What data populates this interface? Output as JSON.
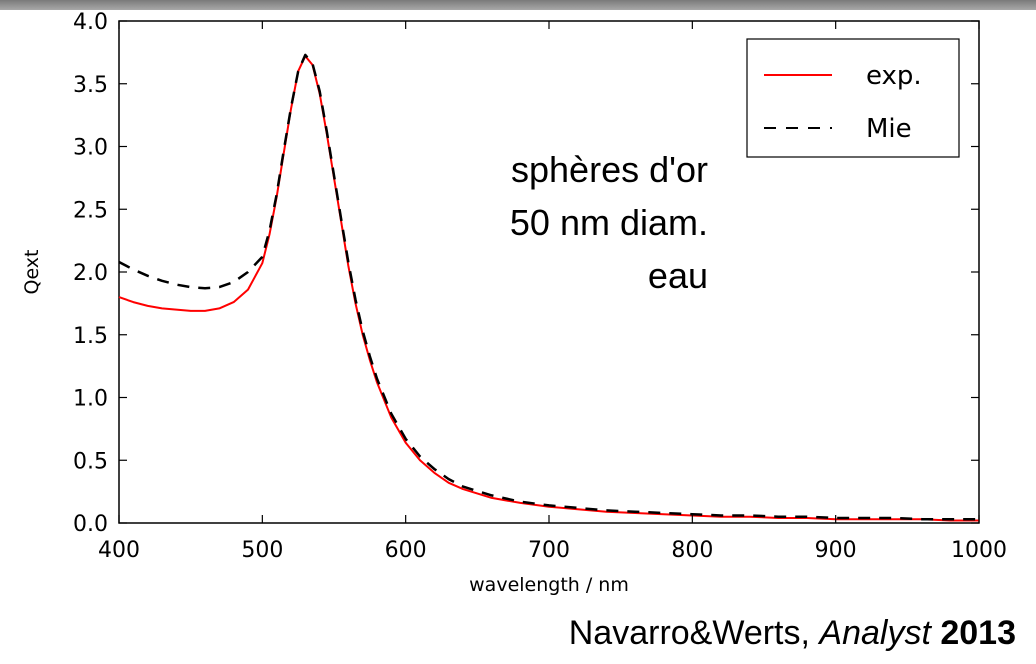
{
  "chart_data": {
    "type": "line",
    "xlabel": "wavelength / nm",
    "ylabel": "Qext",
    "xlim": [
      400,
      1000
    ],
    "ylim": [
      0,
      4.0
    ],
    "xticks": [
      "400",
      "500",
      "600",
      "700",
      "800",
      "900",
      "1000"
    ],
    "yticks": [
      "0.0",
      "0.5",
      "1.0",
      "1.5",
      "2.0",
      "2.5",
      "3.0",
      "3.5",
      "4.0"
    ],
    "grid": false,
    "legend_position": "top-right",
    "series": [
      {
        "name": "exp.",
        "color": "#ff0000",
        "style": "solid",
        "x": [
          400,
          410,
          420,
          430,
          440,
          450,
          460,
          470,
          480,
          490,
          500,
          505,
          510,
          515,
          520,
          525,
          530,
          535,
          540,
          545,
          550,
          555,
          560,
          565,
          570,
          575,
          580,
          590,
          600,
          610,
          620,
          630,
          640,
          660,
          680,
          700,
          720,
          740,
          760,
          780,
          800,
          820,
          840,
          860,
          880,
          900,
          920,
          940,
          960,
          980,
          1000
        ],
        "y": [
          1.8,
          1.76,
          1.73,
          1.71,
          1.7,
          1.69,
          1.69,
          1.71,
          1.76,
          1.86,
          2.07,
          2.3,
          2.6,
          2.95,
          3.3,
          3.6,
          3.72,
          3.65,
          3.42,
          3.1,
          2.75,
          2.4,
          2.05,
          1.75,
          1.5,
          1.3,
          1.12,
          0.84,
          0.64,
          0.5,
          0.4,
          0.32,
          0.27,
          0.2,
          0.16,
          0.13,
          0.11,
          0.09,
          0.08,
          0.07,
          0.06,
          0.05,
          0.05,
          0.04,
          0.04,
          0.03,
          0.03,
          0.03,
          0.03,
          0.02,
          0.02
        ]
      },
      {
        "name": "Mie",
        "color": "#000000",
        "style": "dashed",
        "x": [
          400,
          410,
          420,
          430,
          440,
          450,
          460,
          470,
          480,
          490,
          500,
          505,
          510,
          515,
          520,
          525,
          530,
          535,
          540,
          545,
          550,
          555,
          560,
          565,
          570,
          575,
          580,
          590,
          600,
          610,
          620,
          630,
          640,
          660,
          680,
          700,
          720,
          740,
          760,
          780,
          800,
          820,
          840,
          860,
          880,
          900,
          920,
          940,
          960,
          980,
          1000
        ],
        "y": [
          2.08,
          2.02,
          1.97,
          1.93,
          1.9,
          1.88,
          1.87,
          1.88,
          1.92,
          2.0,
          2.12,
          2.33,
          2.62,
          2.97,
          3.31,
          3.6,
          3.73,
          3.66,
          3.44,
          3.12,
          2.77,
          2.42,
          2.08,
          1.78,
          1.53,
          1.33,
          1.15,
          0.87,
          0.67,
          0.53,
          0.43,
          0.35,
          0.29,
          0.22,
          0.17,
          0.14,
          0.12,
          0.1,
          0.09,
          0.08,
          0.07,
          0.06,
          0.06,
          0.05,
          0.05,
          0.04,
          0.04,
          0.04,
          0.03,
          0.03,
          0.03
        ]
      }
    ],
    "annotation": [
      "sphères d'or",
      "50 nm diam.",
      "eau"
    ]
  },
  "citation": {
    "authors": "Navarro&Werts, ",
    "journal": "Analyst",
    "year": "2013"
  }
}
